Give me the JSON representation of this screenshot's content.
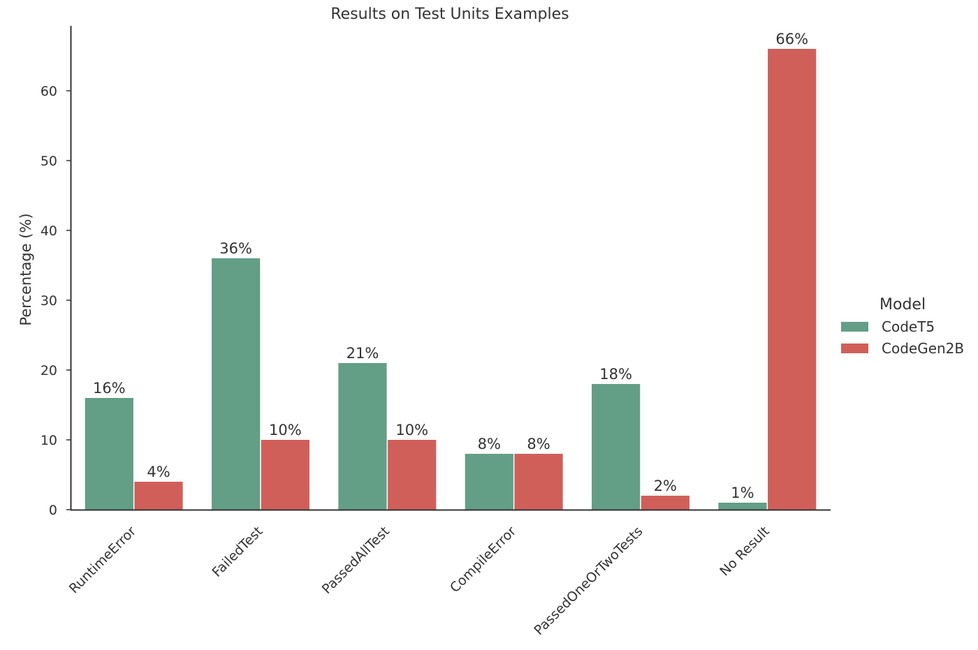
{
  "chart_data": {
    "type": "bar",
    "title": "Results on Test Units Examples",
    "xlabel": "",
    "ylabel": "Percentage (%)",
    "ylim": [
      0,
      69
    ],
    "yticks": [
      0,
      10,
      20,
      30,
      40,
      50,
      60
    ],
    "categories": [
      "RuntimeError",
      "FailedTest",
      "PassedAllTest",
      "CompileError",
      "PassedOneOrTwoTests",
      "No Result"
    ],
    "series": [
      {
        "name": "CodeT5",
        "color": "#639e86",
        "values": [
          16,
          36,
          21,
          8,
          18,
          1
        ],
        "labels": [
          "16%",
          "36%",
          "21%",
          "8%",
          "18%",
          "1%"
        ]
      },
      {
        "name": "CodeGen2B",
        "color": "#d05f5a",
        "values": [
          4,
          10,
          10,
          8,
          2,
          66
        ],
        "labels": [
          "4%",
          "10%",
          "10%",
          "8%",
          "2%",
          "66%"
        ]
      }
    ],
    "legend": {
      "title": "Model",
      "position": "right"
    },
    "grid": false
  }
}
